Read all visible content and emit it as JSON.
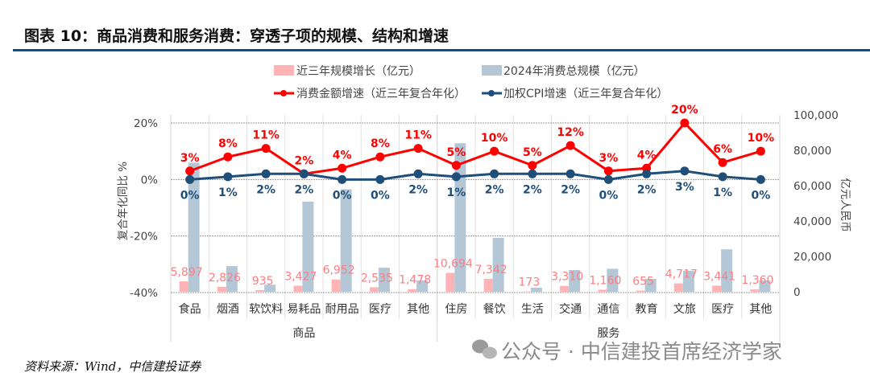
{
  "title": "图表 10：商品消费和服务消费：穿透子项的规模、结构和增速",
  "source": "资料来源：Wind，中信建投证券",
  "watermark": "公众号 · 中信建投首席经济学家",
  "colors": {
    "accent_rule": "#0b4f84",
    "growth_bar": "#ffb3b5",
    "total_bar": "#b4c7d7",
    "spending_line": "#ff0000",
    "cpi_line": "#1f4e79",
    "bar_label": "#ff7c80"
  },
  "chart_data": {
    "type": "bar+line",
    "legend": [
      "近三年规模增长（亿元）",
      "2024年消费总规模（亿元）",
      "消费金额增速（近三年复合年化）",
      "加权CPI增速（近三年复合年化）"
    ],
    "legend_position": "top",
    "categories": [
      "食品",
      "烟酒",
      "软饮料",
      "易耗品",
      "耐用品",
      "医疗",
      "其他",
      "住房",
      "餐饮",
      "生活",
      "交通",
      "通信",
      "教育",
      "文旅",
      "医疗",
      "其他"
    ],
    "groups": [
      {
        "label": "商品",
        "count": 7
      },
      {
        "label": "服务",
        "count": 9
      }
    ],
    "y_left": {
      "label": "复合年化同比 %",
      "range": [
        -40,
        20
      ],
      "ticks": [
        "20%",
        "0%",
        "-20%",
        "-40%"
      ]
    },
    "y_right": {
      "label": "亿元人民币",
      "range": [
        0,
        100000
      ],
      "ticks": [
        "100,000",
        "80,000",
        "60,000",
        "40,000",
        "20,000",
        "0"
      ]
    },
    "grid": "horizontal dashed",
    "series": [
      {
        "name": "近三年规模增长（亿元）",
        "type": "bar",
        "axis": "right",
        "values": [
          5897,
          2826,
          935,
          3427,
          6952,
          2535,
          1478,
          10694,
          7342,
          173,
          3310,
          1160,
          655,
          4717,
          3441,
          1360
        ],
        "labels": [
          "5,897",
          "2,826",
          "935",
          "3,427",
          "6,952",
          "2,535",
          "1,478",
          "10,694",
          "7,342",
          "173",
          "3,310",
          "1,160",
          "655",
          "4,717",
          "3,441",
          "1,360"
        ]
      },
      {
        "name": "2024年消费总规模（亿元）",
        "type": "bar",
        "axis": "right",
        "values": [
          73000,
          14500,
          4000,
          51000,
          58000,
          13600,
          6400,
          84000,
          30500,
          2300,
          12300,
          13000,
          7300,
          11800,
          24000,
          6400
        ]
      },
      {
        "name": "消费金额增速（近三年复合年化）",
        "type": "line",
        "axis": "left",
        "values": [
          3,
          8,
          11,
          2,
          4,
          8,
          11,
          5,
          10,
          5,
          12,
          3,
          4,
          20,
          6,
          10
        ],
        "labels": [
          "3%",
          "8%",
          "11%",
          "2%",
          "4%",
          "8%",
          "11%",
          "5%",
          "10%",
          "5%",
          "12%",
          "3%",
          "4%",
          "20%",
          "6%",
          "10%"
        ]
      },
      {
        "name": "加权CPI增速（近三年复合年化）",
        "type": "line",
        "axis": "left",
        "values": [
          0,
          1,
          2,
          2,
          0,
          0,
          2,
          1,
          2,
          2,
          2,
          0,
          2,
          3,
          1,
          0
        ],
        "labels": [
          "0%",
          "1%",
          "2%",
          "2%",
          "0%",
          "0%",
          "2%",
          "1%",
          "2%",
          "2%",
          "2%",
          "0%",
          "2%",
          "3%",
          "1%",
          "0%"
        ]
      }
    ]
  }
}
